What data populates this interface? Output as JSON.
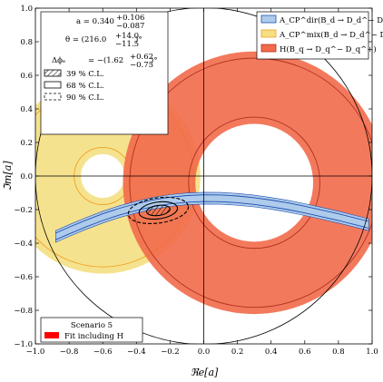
{
  "chart_data": {
    "type": "scatter",
    "xlabel": "ℜe[a]",
    "ylabel": "ℑm[a]",
    "xlim": [
      -1.0,
      1.0
    ],
    "ylim": [
      -1.0,
      1.0
    ],
    "xticks": [
      -1.0,
      -0.8,
      -0.6,
      -0.4,
      -0.2,
      0.0,
      0.2,
      0.4,
      0.6,
      0.8,
      1.0
    ],
    "yticks": [
      -1.0,
      -0.8,
      -0.6,
      -0.4,
      -0.2,
      0.0,
      0.2,
      0.4,
      0.6,
      0.8,
      1.0
    ],
    "xtick_labels": [
      "−1.0",
      "−0.8",
      "−0.6",
      "−0.4",
      "−0.2",
      "0.0",
      "0.2",
      "0.4",
      "0.6",
      "0.8",
      "1.0"
    ],
    "ytick_labels": [
      "−1.0",
      "−0.8",
      "−0.6",
      "−0.4",
      "−0.2",
      "0.0",
      "0.2",
      "0.4",
      "0.6",
      "0.8",
      "1.0"
    ],
    "grid": false,
    "unit_circle": {
      "center": [
        0,
        0
      ],
      "radius": 1.0
    },
    "crosshair": {
      "x": 0.0,
      "y": 0.0
    },
    "series": [
      {
        "name": "A_CP^dir(B_d → D_d^− D_d^+)",
        "kind": "band",
        "color": "#aecbeb",
        "edge_color": "#1f4fb0",
        "points": [
          [
            -0.88,
            -0.36
          ],
          [
            -0.8,
            -0.325
          ],
          [
            -0.7,
            -0.283
          ],
          [
            -0.6,
            -0.245
          ],
          [
            -0.5,
            -0.212
          ],
          [
            -0.4,
            -0.185
          ],
          [
            -0.3,
            -0.162
          ],
          [
            -0.2,
            -0.146
          ],
          [
            -0.1,
            -0.136
          ],
          [
            0.0,
            -0.132
          ],
          [
            0.1,
            -0.133
          ],
          [
            0.2,
            -0.139
          ],
          [
            0.3,
            -0.149
          ],
          [
            0.4,
            -0.163
          ],
          [
            0.5,
            -0.18
          ],
          [
            0.6,
            -0.2
          ],
          [
            0.7,
            -0.222
          ],
          [
            0.8,
            -0.245
          ],
          [
            0.9,
            -0.27
          ],
          [
            0.98,
            -0.29
          ]
        ],
        "half_width": 0.035,
        "inner_half_width": 0.02
      },
      {
        "name": "A_CP^mix(B_d → D_d^− D_d^+)",
        "kind": "annulus",
        "color": "#f4df82",
        "edge_color": "#f0a020",
        "center": [
          -0.6,
          0.0
        ],
        "radii": [
          0.13,
          0.58
        ],
        "inner_band": [
          0.17,
          0.54
        ]
      },
      {
        "name": "H(B_q → D_q^− D_q^+)",
        "kind": "annulus",
        "color": "#f26a4a",
        "edge_color": "#b03020",
        "center": [
          0.3,
          -0.04
        ],
        "radii": [
          0.35,
          0.78
        ],
        "inner_band": [
          0.39,
          0.74
        ]
      },
      {
        "name": "Fit including H",
        "kind": "contours",
        "center": [
          -0.27,
          -0.205
        ],
        "contours": [
          {
            "level": "39 % C.L.",
            "rx": 0.07,
            "ry": 0.03,
            "style": "hatch"
          },
          {
            "level": "68 % C.L.",
            "rx": 0.115,
            "ry": 0.05,
            "style": "solid"
          },
          {
            "level": "90 % C.L.",
            "rx": 0.18,
            "ry": 0.075,
            "style": "dashed"
          }
        ],
        "rotation_deg": -8
      }
    ],
    "result_text": {
      "a": "a = 0.340",
      "a_up": "+0.106",
      "a_down": "−0.087",
      "theta": "θ = (216.0",
      "theta_up": "+14.0",
      "theta_down": "−11.5",
      "theta_unit": ")°",
      "dphi": "Δϕₑ",
      "dphi_value": "= −(1.62",
      "dphi_up": "+0.62",
      "dphi_down": "−0.75",
      "dphi_unit": ")°"
    },
    "cl_legend": [
      "39 % C.L.",
      "68 % C.L.",
      "90 % C.L."
    ],
    "series_legend": [
      {
        "label": "A_CP^dir(B_d → D_d^− D_d^+)",
        "color": "#aecbeb",
        "edge": "#1f4fb0"
      },
      {
        "label": "A_CP^mix(B_d → D_d^− D_d^+)",
        "color": "#f4df82",
        "edge": "#f0a020"
      },
      {
        "label": "H(B_q → D_q^− D_q^+)",
        "color": "#f26a4a",
        "edge": "#b03020"
      }
    ],
    "scenario": {
      "title": "Scenario 5",
      "entry": "Fit including H",
      "entry_color": "#ff0000"
    },
    "legend_positions": [
      "top-left",
      "top-right",
      "bottom-left"
    ]
  }
}
